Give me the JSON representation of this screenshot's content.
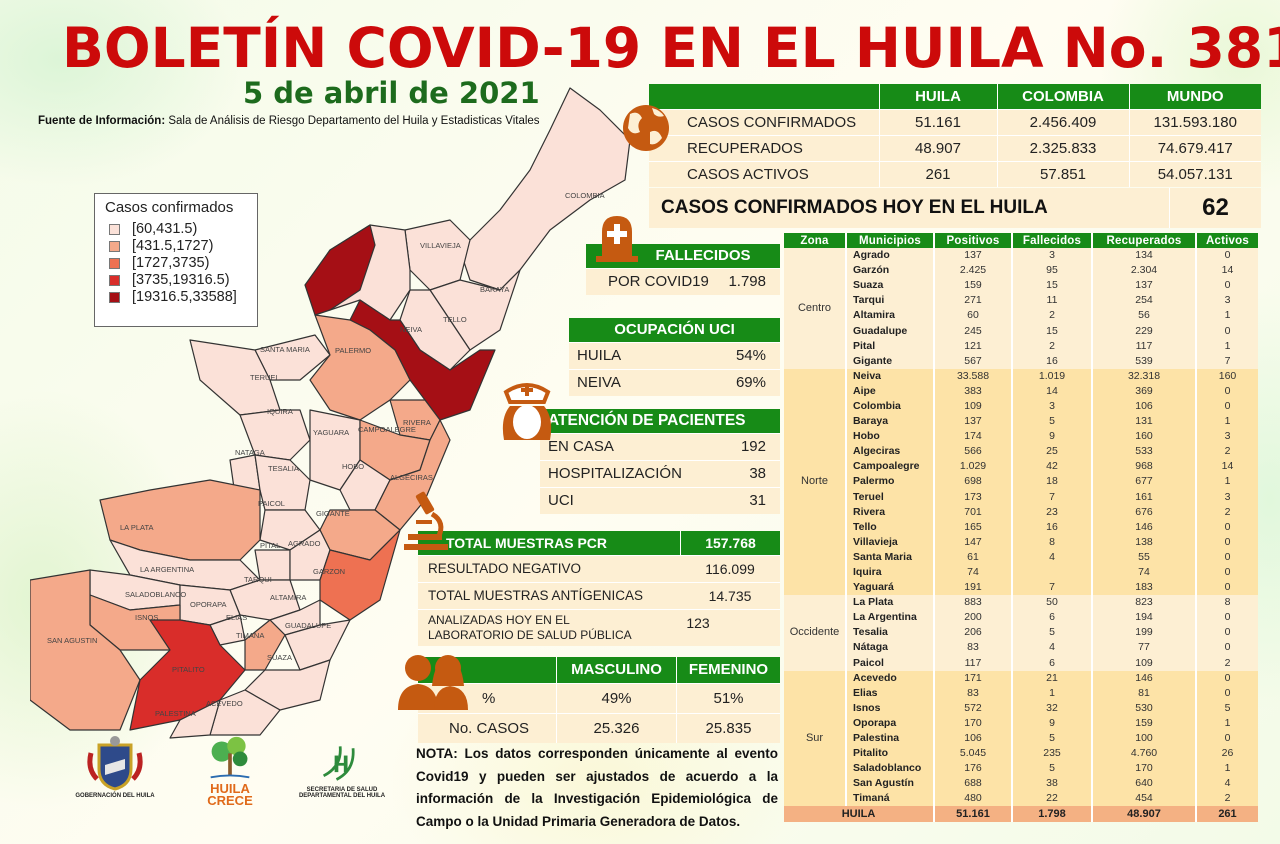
{
  "header": {
    "title": "BOLETÍN COVID-19 EN EL HUILA No. 381",
    "date": "5 de abril de 2021",
    "source_label": "Fuente de Información:",
    "source_text": " Sala de Análisis de Riesgo Departamento del Huila y Estadisticas Vitales"
  },
  "legend": {
    "title": "Casos confirmados",
    "items": [
      {
        "label": "[60,431.5)",
        "color": "#fbe1d8"
      },
      {
        "label": "[431.5,1727)",
        "color": "#f4a98a"
      },
      {
        "label": "[1727,3735)",
        "color": "#ee7152"
      },
      {
        "label": "[3735,19316.5)",
        "color": "#d92d2a"
      },
      {
        "label": "[19316.5,33588]",
        "color": "#a50f15"
      }
    ]
  },
  "map": {
    "labels": [
      "COLOMBIA",
      "VILLAVIEJA",
      "BARAYA",
      "TELLO",
      "NEIVA",
      "AIPE",
      "SANTA MARIA",
      "PALERMO",
      "TERUEL",
      "RIVERA",
      "IQUIRA",
      "YAGUARA",
      "CAMPOALEGRE",
      "NATAGA",
      "TESALIA",
      "HOBO",
      "ALGECIRAS",
      "PAICOL",
      "GIGANTE",
      "LA PLATA",
      "PITAL",
      "AGRADO",
      "GARZON",
      "LA ARGENTINA",
      "TARQUI",
      "SALADOBLANCO",
      "OPORAPA",
      "ALTAMIRA",
      "ISNOS",
      "ELIAS",
      "TIMANA",
      "GUADALUPE",
      "SAN AGUSTIN",
      "PITALITO",
      "SUAZA",
      "ACEVEDO",
      "PALESTINA"
    ]
  },
  "summary": {
    "columns": [
      "",
      "HUILA",
      "COLOMBIA",
      "MUNDO"
    ],
    "rows": [
      {
        "label": "CASOS CONFIRMADOS",
        "huila": "51.161",
        "colombia": "2.456.409",
        "mundo": "131.593.180"
      },
      {
        "label": "RECUPERADOS",
        "huila": "48.907",
        "colombia": "2.325.833",
        "mundo": "74.679.417"
      },
      {
        "label": "CASOS ACTIVOS",
        "huila": "261",
        "colombia": "57.851",
        "mundo": "54.057.131"
      }
    ],
    "today_label": "CASOS CONFIRMADOS  HOY EN EL HUILA",
    "today_value": "62"
  },
  "fallecidos": {
    "title": "FALLECIDOS",
    "label": "POR COVID19",
    "value": "1.798"
  },
  "uci": {
    "title": "OCUPACIÓN  UCI",
    "rows": [
      {
        "label": "HUILA",
        "value": "54%"
      },
      {
        "label": "NEIVA",
        "value": "69%"
      }
    ]
  },
  "atencion": {
    "title": "ATENCIÓN DE PACIENTES",
    "rows": [
      {
        "label": "EN CASA",
        "value": "192"
      },
      {
        "label": "HOSPITALIZACIÓN",
        "value": "38"
      },
      {
        "label": "UCI",
        "value": "31"
      }
    ]
  },
  "pcr": {
    "title": "TOTAL MUESTRAS  PCR",
    "total": "157.768",
    "rows": [
      {
        "label": "RESULTADO  NEGATIVO",
        "value": "116.099"
      },
      {
        "label": "TOTAL  MUESTRAS  ANTÍGENICAS",
        "value": "14.735"
      },
      {
        "label": "ANALIZADAS HOY EN EL LABORATORIO DE SALUD PÚBLICA",
        "value": "123"
      }
    ]
  },
  "gender": {
    "col_male": "MASCULINO",
    "col_female": "FEMENINO",
    "rows": [
      {
        "label": "%",
        "male": "49%",
        "female": "51%"
      },
      {
        "label": "No. CASOS",
        "male": "25.326",
        "female": "25.835"
      }
    ]
  },
  "nota": "NOTA: Los datos corresponden únicamente al evento Covid19 y pueden ser ajustados de acuerdo a la información de la Investigación Epidemiológica de Campo o la Unidad Primaria Generadora de Datos.",
  "municipal_table": {
    "columns": [
      "Zona",
      "Municipios",
      "Positivos",
      "Fallecidos",
      "Recuperados",
      "Activos"
    ],
    "zones": [
      {
        "zona": "Centro",
        "rows": [
          [
            "Agrado",
            "137",
            "3",
            "134",
            "0"
          ],
          [
            "Garzón",
            "2.425",
            "95",
            "2.304",
            "14"
          ],
          [
            "Suaza",
            "159",
            "15",
            "137",
            "0"
          ],
          [
            "Tarqui",
            "271",
            "11",
            "254",
            "3"
          ],
          [
            "Altamira",
            "60",
            "2",
            "56",
            "1"
          ],
          [
            "Guadalupe",
            "245",
            "15",
            "229",
            "0"
          ],
          [
            "Pital",
            "121",
            "2",
            "117",
            "1"
          ],
          [
            "Gigante",
            "567",
            "16",
            "539",
            "7"
          ]
        ]
      },
      {
        "zona": "Norte",
        "rows": [
          [
            "Neiva",
            "33.588",
            "1.019",
            "32.318",
            "160"
          ],
          [
            "Aipe",
            "383",
            "14",
            "369",
            "0"
          ],
          [
            "Colombia",
            "109",
            "3",
            "106",
            "0"
          ],
          [
            "Baraya",
            "137",
            "5",
            "131",
            "1"
          ],
          [
            "Hobo",
            "174",
            "9",
            "160",
            "3"
          ],
          [
            "Algeciras",
            "566",
            "25",
            "533",
            "2"
          ],
          [
            "Campoalegre",
            "1.029",
            "42",
            "968",
            "14"
          ],
          [
            "Palermo",
            "698",
            "18",
            "677",
            "1"
          ],
          [
            "Teruel",
            "173",
            "7",
            "161",
            "3"
          ],
          [
            "Rivera",
            "701",
            "23",
            "676",
            "2"
          ],
          [
            "Tello",
            "165",
            "16",
            "146",
            "0"
          ],
          [
            "Villavieja",
            "147",
            "8",
            "138",
            "0"
          ],
          [
            "Santa Maria",
            "61",
            "4",
            "55",
            "0"
          ],
          [
            "Iquira",
            "74",
            "",
            "74",
            "0"
          ],
          [
            "Yaguará",
            "191",
            "7",
            "183",
            "0"
          ]
        ]
      },
      {
        "zona": "Occidente",
        "rows": [
          [
            "La Plata",
            "883",
            "50",
            "823",
            "8"
          ],
          [
            "La Argentina",
            "200",
            "6",
            "194",
            "0"
          ],
          [
            "Tesalia",
            "206",
            "5",
            "199",
            "0"
          ],
          [
            "Nátaga",
            "83",
            "4",
            "77",
            "0"
          ],
          [
            "Paicol",
            "117",
            "6",
            "109",
            "2"
          ]
        ]
      },
      {
        "zona": "Sur",
        "rows": [
          [
            "Acevedo",
            "171",
            "21",
            "146",
            "0"
          ],
          [
            "Elias",
            "83",
            "1",
            "81",
            "0"
          ],
          [
            "Isnos",
            "572",
            "32",
            "530",
            "5"
          ],
          [
            "Oporapa",
            "170",
            "9",
            "159",
            "1"
          ],
          [
            "Palestina",
            "106",
            "5",
            "100",
            "0"
          ],
          [
            "Pitalito",
            "5.045",
            "235",
            "4.760",
            "26"
          ],
          [
            "Saladoblanco",
            "176",
            "5",
            "170",
            "1"
          ],
          [
            "San Agustín",
            "688",
            "38",
            "640",
            "4"
          ],
          [
            "Timaná",
            "480",
            "22",
            "454",
            "2"
          ]
        ]
      }
    ],
    "total": {
      "label": "HUILA",
      "positivos": "51.161",
      "fallecidos": "1.798",
      "recuperados": "48.907",
      "activos": "261"
    }
  },
  "logos": {
    "gobernacion": "GOBERNACIÓN  DEL  HUILA",
    "huila_crece_1": "HUILA",
    "huila_crece_2": "CRECE",
    "secretaria_1": "SECRETARIA DE SALUD",
    "secretaria_2": "DEPARTAMENTAL DEL HUILA"
  },
  "colors": {
    "title_red": "#cc0a0a",
    "date_green": "#1d6b1d",
    "header_green": "#178b17",
    "cream": "#fdefd3",
    "icon_orange": "#c55a11",
    "total_row": "#f4b183"
  }
}
